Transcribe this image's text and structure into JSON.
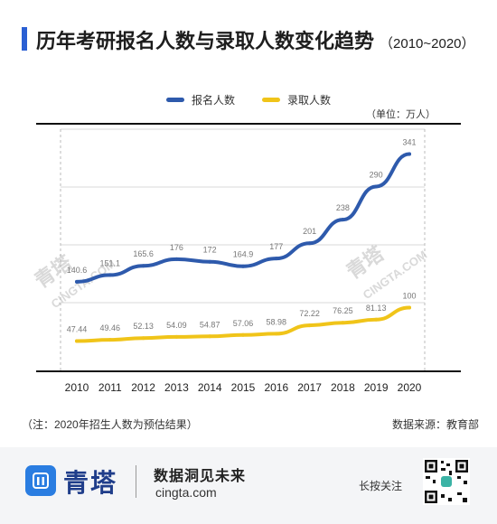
{
  "header": {
    "title": "历年考研报名人数与录取人数变化趋势",
    "subtitle": "（2010~2020）"
  },
  "unit_label": "（单位：万人）",
  "footnote_left": "（注：2020年招生人数为预估结果）",
  "footnote_right": "数据来源：教育部",
  "footer": {
    "brand": "青塔",
    "slogan": "数据洞见未来",
    "site": "cingta.com",
    "press_hold": "长按关注"
  },
  "watermark": {
    "cn": "青塔",
    "en": "CINGTA.COM"
  },
  "colors": {
    "accent": "#2a5fd3",
    "applicants": "#2e5aac",
    "admitted": "#f0c419"
  },
  "chart_data": {
    "type": "line",
    "x": [
      "2010",
      "2011",
      "2012",
      "2013",
      "2014",
      "2015",
      "2016",
      "2017",
      "2018",
      "2019",
      "2020"
    ],
    "series": [
      {
        "name": "报名人数",
        "color": "#2e5aac",
        "values": [
          140.6,
          151.1,
          165.6,
          176,
          172,
          164.9,
          177,
          201,
          238,
          290,
          341
        ],
        "labels": [
          "140.6",
          "151.1",
          "165.6",
          "176",
          "172",
          "164.9",
          "177",
          "201",
          "238",
          "290",
          "341"
        ]
      },
      {
        "name": "录取人数",
        "color": "#f0c419",
        "values": [
          47.44,
          49.46,
          52.13,
          54.09,
          54.87,
          57.06,
          58.98,
          72.22,
          76.25,
          81.13,
          100
        ],
        "labels": [
          "47.44",
          "49.46",
          "52.13",
          "54.09",
          "54.87",
          "57.06",
          "58.98",
          "72.22",
          "76.25",
          "81.13",
          "100"
        ]
      }
    ],
    "ylim": [
      0,
      380
    ],
    "grid": true,
    "legend": "top-center"
  }
}
